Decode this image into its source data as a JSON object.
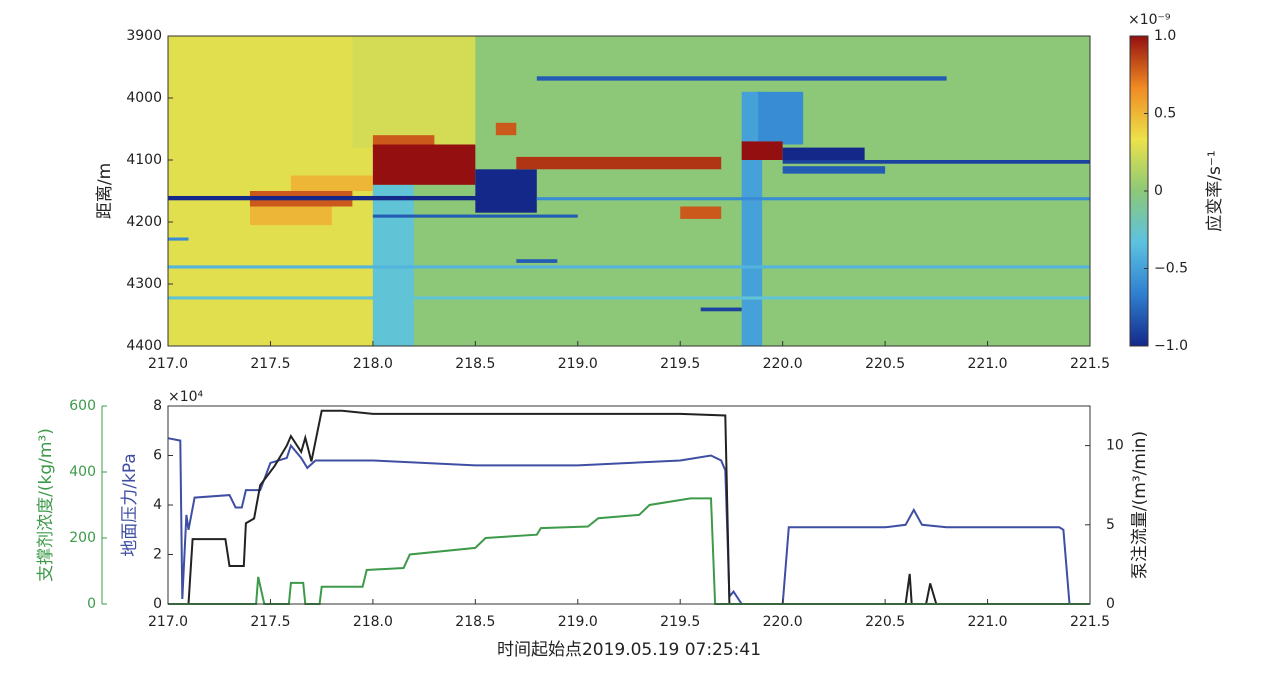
{
  "chart_data": [
    {
      "type": "heatmap",
      "y_label": "距离/m",
      "colorbar_label": "应变率/s⁻¹",
      "colorbar_exponent": "×10⁻⁹",
      "xlim": [
        217,
        221.5
      ],
      "xticks": [
        {
          "value": 217,
          "label": "217.0"
        },
        217.5,
        {
          "value": 218,
          "label": "218.0"
        },
        218.5,
        {
          "value": 219,
          "label": "219.0"
        },
        219.5,
        {
          "value": 220,
          "label": "220.0"
        },
        220.5,
        {
          "value": 221,
          "label": "221.0"
        },
        221.5
      ],
      "ylim": [
        3900,
        4400
      ],
      "y_reversed": true,
      "yticks": [
        3900,
        4000,
        4100,
        4200,
        4300,
        4400
      ],
      "clim": [
        -1,
        1
      ],
      "cticks": [
        {
          "value": 1,
          "label": "1.0"
        },
        0.5,
        0,
        {
          "value": -0.5,
          "label": "−0.5"
        },
        {
          "value": -1,
          "label": "−1.0"
        }
      ],
      "colormap": [
        "#14288a",
        "#2f7fd0",
        "#5cc2e0",
        "#8cc878",
        "#ece24a",
        "#f08a22",
        "#941010"
      ],
      "regions": [
        {
          "x": [
            217,
            221.5
          ],
          "y": [
            3900,
            4400
          ],
          "value": 0
        },
        {
          "x": [
            217,
            218.0
          ],
          "y": [
            3900,
            4400
          ],
          "value": 0.3
        },
        {
          "x": [
            217.9,
            218.5
          ],
          "y": [
            3900,
            4080
          ],
          "value": 0.25
        },
        {
          "x": [
            218.0,
            218.2
          ],
          "y": [
            4140,
            4400
          ],
          "value": -0.3
        },
        {
          "x": [
            219.8,
            219.9
          ],
          "y": [
            3990,
            4400
          ],
          "value": -0.5
        },
        {
          "x": [
            219.88,
            220.1
          ],
          "y": [
            3990,
            4075
          ],
          "value": -0.6
        },
        {
          "x": [
            217.6,
            218.0
          ],
          "y": [
            4125,
            4150
          ],
          "value": 0.5
        },
        {
          "x": [
            218.0,
            218.3
          ],
          "y": [
            4060,
            4080
          ],
          "value": 0.8
        },
        {
          "x": [
            218.0,
            218.5
          ],
          "y": [
            4075,
            4140
          ],
          "value": 1
        },
        {
          "x": [
            217.4,
            217.9
          ],
          "y": [
            4150,
            4175
          ],
          "value": 0.8
        },
        {
          "x": [
            217.4,
            217.8
          ],
          "y": [
            4175,
            4205
          ],
          "value": 0.5
        },
        {
          "x": [
            217.0,
            218.6
          ],
          "y": [
            4158,
            4165
          ],
          "value": -1
        },
        {
          "x": [
            218.5,
            218.8
          ],
          "y": [
            4115,
            4185
          ],
          "value": -1
        },
        {
          "x": [
            218.6,
            218.7
          ],
          "y": [
            4040,
            4060
          ],
          "value": 0.8
        },
        {
          "x": [
            218.7,
            219.7
          ],
          "y": [
            4095,
            4115
          ],
          "value": 0.9
        },
        {
          "x": [
            219.8,
            220.0
          ],
          "y": [
            4070,
            4100
          ],
          "value": 1
        },
        {
          "x": [
            220.0,
            220.4
          ],
          "y": [
            4080,
            4100
          ],
          "value": -1
        },
        {
          "x": [
            220.0,
            221.5
          ],
          "y": [
            4100,
            4106
          ],
          "value": -0.9
        },
        {
          "x": [
            220.0,
            220.5
          ],
          "y": [
            4110,
            4122
          ],
          "value": -0.8
        },
        {
          "x": [
            219.5,
            219.7
          ],
          "y": [
            4175,
            4195
          ],
          "value": 0.8
        },
        {
          "x": [
            218.0,
            219.0
          ],
          "y": [
            4188,
            4193
          ],
          "value": -0.8
        },
        {
          "x": [
            218.8,
            221.5
          ],
          "y": [
            4160,
            4165
          ],
          "value": -0.6
        },
        {
          "x": [
            217.0,
            217.1
          ],
          "y": [
            4225,
            4230
          ],
          "value": -0.6
        },
        {
          "x": [
            218.8,
            220.8
          ],
          "y": [
            3965,
            3972
          ],
          "value": -0.8
        },
        {
          "x": [
            219.6,
            219.8
          ],
          "y": [
            4338,
            4344
          ],
          "value": -0.9
        },
        {
          "x": [
            218.7,
            218.9
          ],
          "y": [
            4260,
            4266
          ],
          "value": -0.8
        },
        {
          "x": [
            217.0,
            221.5
          ],
          "y": [
            4270,
            4275
          ],
          "value": -0.4
        },
        {
          "x": [
            217.0,
            221.5
          ],
          "y": [
            4320,
            4325
          ],
          "value": -0.3
        }
      ]
    },
    {
      "type": "line",
      "x_label": "时间起始点2019.05.19 07:25:41",
      "xlim": [
        217,
        221.5
      ],
      "xticks": [
        {
          "value": 217,
          "label": "217.0"
        },
        217.5,
        {
          "value": 218,
          "label": "218.0"
        },
        218.5,
        {
          "value": 219,
          "label": "219.0"
        },
        219.5,
        {
          "value": 220,
          "label": "220.0"
        },
        220.5,
        {
          "value": 221,
          "label": "221.0"
        },
        221.5
      ],
      "y_label": "地面压力/kPa",
      "y_exponent": "×10⁴",
      "ylim": [
        0,
        8
      ],
      "yticks": [
        0,
        2,
        4,
        6,
        8
      ],
      "y2_label": "泵注流量/(m³/min)",
      "y2lim": [
        0,
        12.5
      ],
      "y2ticks": [
        0,
        5,
        10
      ],
      "y3_label": "支撑剂浓度/(kg/m³)",
      "y3_color": "#3d9a4a",
      "y3lim": [
        0,
        600
      ],
      "y3ticks": [
        0,
        200,
        400,
        600
      ],
      "series": [
        {
          "color": "#3f4ea3",
          "axis": "y",
          "x": [
            217.0,
            217.06,
            217.07,
            217.09,
            217.1,
            217.13,
            217.3,
            217.33,
            217.36,
            217.38,
            217.45,
            217.5,
            217.58,
            217.6,
            217.65,
            217.68,
            217.72,
            218.0,
            218.5,
            219.0,
            219.5,
            219.65,
            219.7,
            219.72,
            219.74,
            219.76,
            219.8,
            220.0,
            220.03,
            220.5,
            220.6,
            220.64,
            220.68,
            220.8,
            221.35,
            221.37,
            221.4
          ],
          "values": [
            6.7,
            6.6,
            0.2,
            3.6,
            3.0,
            4.3,
            4.4,
            3.9,
            3.9,
            4.6,
            4.6,
            5.7,
            5.9,
            6.4,
            5.9,
            5.5,
            5.8,
            5.8,
            5.6,
            5.6,
            5.8,
            6.0,
            5.8,
            5.4,
            0.3,
            0.5,
            0,
            0,
            3.1,
            3.1,
            3.2,
            3.8,
            3.2,
            3.1,
            3.1,
            3.0,
            0
          ]
        },
        {
          "color": "#222222",
          "axis": "y2",
          "x": [
            217.0,
            217.1,
            217.12,
            217.28,
            217.3,
            217.37,
            217.38,
            217.42,
            217.45,
            217.52,
            217.58,
            217.6,
            217.65,
            217.67,
            217.7,
            217.75,
            217.85,
            218.0,
            219.5,
            219.72,
            219.74,
            220.6,
            220.62,
            220.63,
            220.7,
            220.72,
            220.75,
            221.5
          ],
          "values": [
            0,
            0,
            4.1,
            4.1,
            2.4,
            2.4,
            5.1,
            5.4,
            7.5,
            8.7,
            10.0,
            10.6,
            9.6,
            10.5,
            9.0,
            12.2,
            12.2,
            12.0,
            12.0,
            11.9,
            0,
            0,
            1.9,
            0,
            0,
            1.3,
            0,
            0
          ]
        },
        {
          "color": "#3d9a4a",
          "axis": "y3",
          "x": [
            217.0,
            217.43,
            217.44,
            217.47,
            217.59,
            217.6,
            217.66,
            217.67,
            217.74,
            217.75,
            217.95,
            217.97,
            218.15,
            218.18,
            218.5,
            218.55,
            218.8,
            218.82,
            219.05,
            219.1,
            219.3,
            219.35,
            219.55,
            219.65,
            219.67,
            221.5
          ],
          "values": [
            0,
            0,
            82,
            0,
            0,
            64,
            64,
            0,
            0,
            52,
            52,
            103,
            109,
            150,
            170,
            200,
            210,
            230,
            235,
            260,
            270,
            300,
            320,
            320,
            0,
            0
          ]
        }
      ]
    }
  ]
}
